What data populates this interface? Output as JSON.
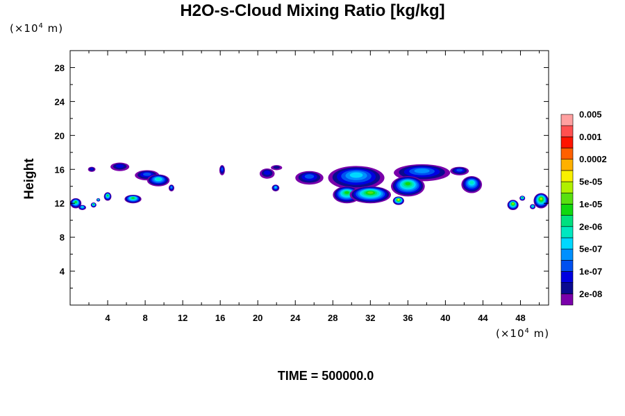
{
  "chart_data": {
    "type": "heatmap",
    "title": "H2O-s-Cloud Mixing Ratio [kg/kg]",
    "ylabel": "Height",
    "x_scale_note": "(×10",
    "x_scale_exp": "4",
    "x_scale_unit": " m)",
    "y_scale_note": "(×10",
    "y_scale_exp": "4",
    "y_scale_unit": " m)",
    "footer": "TIME = 500000.0",
    "xlim": [
      0,
      51
    ],
    "ylim": [
      0,
      30
    ],
    "x_ticks": [
      4,
      8,
      12,
      16,
      20,
      24,
      28,
      32,
      36,
      40,
      44,
      48
    ],
    "x_tick_labels": [
      "4",
      "8",
      "12",
      "16",
      "20",
      "24",
      "28",
      "32",
      "36",
      "40",
      "44",
      "48"
    ],
    "y_ticks": [
      4,
      8,
      12,
      16,
      20,
      24,
      28
    ],
    "y_tick_labels": [
      "4",
      "8",
      "12",
      "16",
      "20",
      "24",
      "28"
    ],
    "colorbar": {
      "colors": [
        "#7a00aa",
        "#0a0a90",
        "#0000e0",
        "#0050f0",
        "#0090ff",
        "#00d8ff",
        "#00e8c0",
        "#00e080",
        "#10d810",
        "#58e010",
        "#b0f000",
        "#f8f000",
        "#ffb000",
        "#ff6000",
        "#ff1400",
        "#ff5050",
        "#ffa0a0"
      ],
      "labels": [
        "2e-08",
        "1e-07",
        "5e-07",
        "2e-06",
        "1e-05",
        "5e-05",
        "0.0002",
        "0.001",
        "0.005"
      ]
    },
    "cloud_patches": [
      {
        "cx": 2.3,
        "cy": 16.0,
        "rx": 0.4,
        "ry": 0.3,
        "level": 2
      },
      {
        "cx": 5.3,
        "cy": 16.3,
        "rx": 1.0,
        "ry": 0.5,
        "level": 2
      },
      {
        "cx": 8.2,
        "cy": 15.3,
        "rx": 1.3,
        "ry": 0.6,
        "level": 3
      },
      {
        "cx": 9.4,
        "cy": 14.7,
        "rx": 1.2,
        "ry": 0.7,
        "level": 6
      },
      {
        "cx": 10.8,
        "cy": 13.8,
        "rx": 0.3,
        "ry": 0.4,
        "level": 4
      },
      {
        "cx": 16.2,
        "cy": 15.9,
        "rx": 0.3,
        "ry": 0.6,
        "level": 3
      },
      {
        "cx": 21.0,
        "cy": 15.5,
        "rx": 0.8,
        "ry": 0.6,
        "level": 2
      },
      {
        "cx": 22.0,
        "cy": 16.2,
        "rx": 0.6,
        "ry": 0.3,
        "level": 1
      },
      {
        "cx": 21.9,
        "cy": 13.8,
        "rx": 0.4,
        "ry": 0.4,
        "level": 5
      },
      {
        "cx": 25.5,
        "cy": 15.0,
        "rx": 1.5,
        "ry": 0.8,
        "level": 3
      },
      {
        "cx": 30.5,
        "cy": 15.0,
        "rx": 3.0,
        "ry": 1.4,
        "level": 5
      },
      {
        "cx": 29.5,
        "cy": 13.0,
        "rx": 1.5,
        "ry": 1.0,
        "level": 8
      },
      {
        "cx": 32.0,
        "cy": 13.0,
        "rx": 2.2,
        "ry": 1.0,
        "level": 9
      },
      {
        "cx": 37.5,
        "cy": 15.6,
        "rx": 3.0,
        "ry": 1.0,
        "level": 4
      },
      {
        "cx": 36.0,
        "cy": 14.0,
        "rx": 1.8,
        "ry": 1.2,
        "level": 8
      },
      {
        "cx": 35.0,
        "cy": 12.3,
        "rx": 0.6,
        "ry": 0.5,
        "level": 11
      },
      {
        "cx": 41.5,
        "cy": 15.8,
        "rx": 1.0,
        "ry": 0.5,
        "level": 3
      },
      {
        "cx": 42.8,
        "cy": 14.2,
        "rx": 1.1,
        "ry": 1.0,
        "level": 6
      },
      {
        "cx": 0.6,
        "cy": 12.0,
        "rx": 0.6,
        "ry": 0.6,
        "level": 8
      },
      {
        "cx": 1.3,
        "cy": 11.5,
        "rx": 0.4,
        "ry": 0.3,
        "level": 6
      },
      {
        "cx": 2.5,
        "cy": 11.8,
        "rx": 0.3,
        "ry": 0.3,
        "level": 8
      },
      {
        "cx": 3.0,
        "cy": 12.4,
        "rx": 0.2,
        "ry": 0.2,
        "level": 7
      },
      {
        "cx": 4.0,
        "cy": 12.8,
        "rx": 0.4,
        "ry": 0.5,
        "level": 8
      },
      {
        "cx": 6.7,
        "cy": 12.5,
        "rx": 0.9,
        "ry": 0.5,
        "level": 8
      },
      {
        "cx": 47.2,
        "cy": 11.8,
        "rx": 0.6,
        "ry": 0.6,
        "level": 10
      },
      {
        "cx": 48.2,
        "cy": 12.6,
        "rx": 0.3,
        "ry": 0.3,
        "level": 8
      },
      {
        "cx": 50.2,
        "cy": 12.3,
        "rx": 0.8,
        "ry": 0.9,
        "level": 10
      },
      {
        "cx": 49.3,
        "cy": 11.6,
        "rx": 0.3,
        "ry": 0.3,
        "level": 7
      }
    ]
  }
}
